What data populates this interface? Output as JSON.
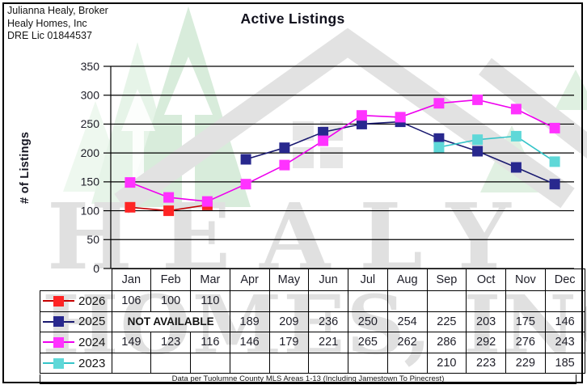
{
  "broker": {
    "line1": "Julianna Healy, Broker",
    "line2": "Healy Homes, Inc",
    "line3": "DRE Lic 01844537"
  },
  "title": "Active Listings",
  "y_axis_label": "# of Listings",
  "footnote": "Data per Tuolumne County MLS Areas 1-13 (Including Jamestown To Pinecrest)",
  "watermark": {
    "line1": "HEALY",
    "line2": "HOMES, INC"
  },
  "colors": {
    "grid": "#000000",
    "text": "#1e1e28",
    "watermark_gray": "#e2e2e2",
    "tree_green_dark": "#d8ecdb",
    "tree_green_light": "#e6f4e8"
  },
  "chart_data": {
    "type": "line",
    "title": "Active Listings",
    "ylabel": "# of Listings",
    "categories": [
      "Jan",
      "Feb",
      "Mar",
      "Apr",
      "May",
      "Jun",
      "Jul",
      "Aug",
      "Sep",
      "Oct",
      "Nov",
      "Dec"
    ],
    "ylim": [
      0,
      350
    ],
    "ytick_step": 50,
    "grid": true,
    "legend_position": "table-left",
    "marker": "square",
    "series": [
      {
        "name": "2026",
        "marker_color": "#ff2424",
        "line_color": "#c40000",
        "values": [
          106,
          100,
          110,
          null,
          null,
          null,
          null,
          null,
          null,
          null,
          null,
          null
        ]
      },
      {
        "name": "2025",
        "marker_color": "#28288e",
        "line_color": "#1a1a70",
        "values": [
          null,
          null,
          null,
          189,
          209,
          236,
          250,
          254,
          225,
          203,
          175,
          146
        ],
        "table_note": {
          "label": "NOT AVAILABLE",
          "col_start": 0,
          "col_span": 3
        }
      },
      {
        "name": "2024",
        "marker_color": "#ff32ff",
        "line_color": "#ee00ee",
        "values": [
          149,
          123,
          116,
          146,
          179,
          221,
          265,
          262,
          286,
          292,
          276,
          243
        ]
      },
      {
        "name": "2023",
        "marker_color": "#5fd8d8",
        "line_color": "#35c4c8",
        "values": [
          null,
          null,
          null,
          null,
          null,
          null,
          null,
          null,
          210,
          223,
          229,
          185
        ]
      }
    ]
  }
}
